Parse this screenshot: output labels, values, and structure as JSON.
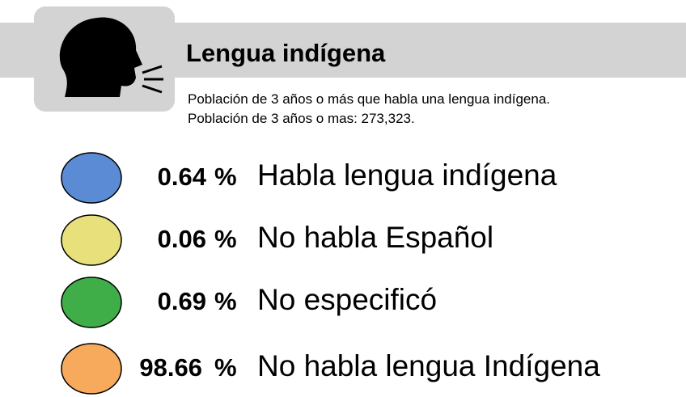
{
  "header": {
    "title": "Lengua indígena",
    "subtitle": [
      "Población de 3 años o más que habla una lengua indígena.",
      "Población de 3 años o mas: 273,323."
    ]
  },
  "items": [
    {
      "value": "0.64",
      "unit": "%",
      "label": "Habla lengua indígena"
    },
    {
      "value": "0.06",
      "unit": "%",
      "label": "No habla Español"
    },
    {
      "value": "0.69",
      "unit": "%",
      "label": "No especificó"
    },
    {
      "value": "98.66",
      "unit": "%",
      "label": "No habla lengua Indígena"
    }
  ]
}
